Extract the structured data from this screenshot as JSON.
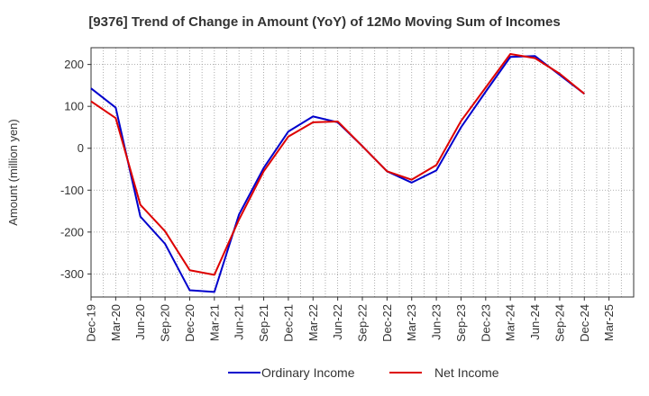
{
  "chart_data": {
    "type": "line",
    "title": "[9376]  Trend of Change in Amount (YoY) of 12Mo Moving Sum of Incomes",
    "xlabel": "",
    "ylabel": "Amount (million yen)",
    "ylim": [
      -355,
      240
    ],
    "yticks": [
      200,
      100,
      0,
      -100,
      -200,
      -300
    ],
    "ytick_labels": [
      "200",
      "100",
      "0",
      "-100",
      "-200",
      "-300"
    ],
    "categories": [
      "Dec-19",
      "Mar-20",
      "Jun-20",
      "Sep-20",
      "Dec-20",
      "Mar-21",
      "Jun-21",
      "Sep-21",
      "Dec-21",
      "Mar-22",
      "Jun-22",
      "Sep-22",
      "Dec-22",
      "Mar-23",
      "Jun-23",
      "Sep-23",
      "Dec-23",
      "Mar-24",
      "Jun-24",
      "Sep-24",
      "Dec-24",
      "Mar-25"
    ],
    "series": [
      {
        "name": "Ordinary Income",
        "color": "#0000cc",
        "values": [
          143,
          97,
          -163,
          -228,
          -339,
          -343,
          -158,
          -47,
          40,
          76,
          62,
          5,
          -55,
          -82,
          -53,
          50,
          135,
          218,
          220,
          175,
          130,
          null
        ]
      },
      {
        "name": "Net Income",
        "color": "#dd0000",
        "values": [
          112,
          72,
          -135,
          -198,
          -291,
          -302,
          -170,
          -55,
          28,
          62,
          64,
          5,
          -55,
          -75,
          -40,
          65,
          145,
          225,
          215,
          178,
          130,
          null
        ]
      }
    ],
    "grid": true,
    "legend_position": "bottom-center"
  }
}
